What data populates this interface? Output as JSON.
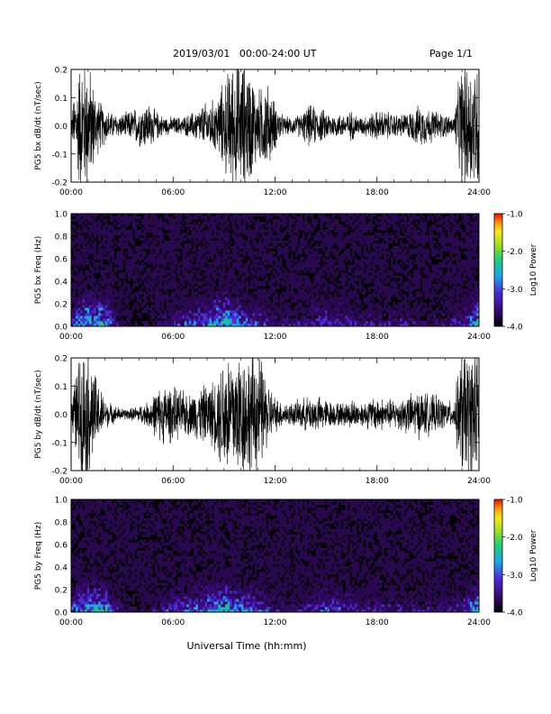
{
  "header": {
    "date_title": "2019/03/01   00:00-24:00 UT",
    "page_label": "Page 1/1"
  },
  "footer": {
    "x_axis_title": "Universal Time (hh:mm)"
  },
  "colors": {
    "trace": "#000000",
    "background": "#ffffff",
    "spectrogram_bg": "#000000"
  },
  "chart_data": [
    {
      "type": "line",
      "ylabel": "PG5 bx dB/dt (nT/sec)",
      "xlim": [
        "00:00",
        "24:00"
      ],
      "ylim": [
        -0.2,
        0.2
      ],
      "x_tick_labels": [
        "00:00",
        "06:00",
        "12:00",
        "18:00",
        "24:00"
      ],
      "y_tick_labels": [
        "-0.2",
        "-0.1",
        "0.0",
        "0.1",
        "0.2"
      ],
      "series": [
        {
          "x_hours": [
            0,
            0.5,
            1,
            1.5,
            2,
            2.5,
            3,
            3.5,
            4,
            4.5,
            5,
            5.5,
            6,
            6.5,
            7,
            7.5,
            8,
            8.5,
            9,
            9.5,
            10,
            10.5,
            11,
            11.5,
            12,
            12.5,
            13,
            13.5,
            14,
            14.5,
            15,
            15.5,
            16,
            16.5,
            17,
            17.5,
            18,
            18.5,
            19,
            19.5,
            20,
            20.5,
            21,
            21.5,
            22,
            22.5,
            23,
            23.5,
            24
          ],
          "amplitude": [
            0.03,
            0.22,
            0.22,
            0.1,
            0.06,
            0.04,
            0.04,
            0.05,
            0.07,
            0.08,
            0.05,
            0.03,
            0.03,
            0.03,
            0.04,
            0.06,
            0.08,
            0.09,
            0.15,
            0.22,
            0.22,
            0.2,
            0.12,
            0.15,
            0.08,
            0.03,
            0.03,
            0.04,
            0.07,
            0.06,
            0.05,
            0.04,
            0.04,
            0.05,
            0.03,
            0.04,
            0.05,
            0.05,
            0.04,
            0.04,
            0.05,
            0.07,
            0.06,
            0.05,
            0.04,
            0.03,
            0.22,
            0.22,
            0.22
          ]
        }
      ]
    },
    {
      "type": "heatmap",
      "ylabel": "PG5 bx Freq (Hz)",
      "xlim": [
        "00:00",
        "24:00"
      ],
      "ylim": [
        0.0,
        1.0
      ],
      "x_tick_labels": [
        "00:00",
        "06:00",
        "12:00",
        "18:00",
        "24:00"
      ],
      "y_tick_labels": [
        "0.0",
        "0.2",
        "0.4",
        "0.6",
        "0.8",
        "1.0"
      ],
      "colorbar": {
        "label": "Log10 Power",
        "range": [
          -4.0,
          -1.0
        ],
        "tick_labels": [
          "-1.0",
          "-2.0",
          "-3.0",
          "-4.0"
        ]
      },
      "low_freq_power_by_hour": [
        -3.0,
        -2.5,
        -2.6,
        -3.6,
        -3.8,
        -3.5,
        -3.2,
        -3.0,
        -2.8,
        -2.4,
        -2.8,
        -3.0,
        -3.3,
        -3.4,
        -3.2,
        -3.0,
        -3.1,
        -3.3,
        -3.4,
        -3.3,
        -3.4,
        -3.5,
        -3.4,
        -3.2,
        -2.4
      ]
    },
    {
      "type": "line",
      "ylabel": "PG5 by dB/dt (nT/sec)",
      "xlim": [
        "00:00",
        "24:00"
      ],
      "ylim": [
        -0.2,
        0.2
      ],
      "x_tick_labels": [
        "00:00",
        "06:00",
        "12:00",
        "18:00",
        "24:00"
      ],
      "y_tick_labels": [
        "-0.2",
        "-0.1",
        "0.0",
        "0.1",
        "0.2"
      ],
      "series": [
        {
          "x_hours": [
            0,
            0.5,
            1,
            1.5,
            2,
            2.5,
            3,
            3.5,
            4,
            4.5,
            5,
            5.5,
            6,
            6.5,
            7,
            7.5,
            8,
            8.5,
            9,
            9.5,
            10,
            10.5,
            11,
            11.5,
            12,
            12.5,
            13,
            13.5,
            14,
            14.5,
            15,
            15.5,
            16,
            16.5,
            17,
            17.5,
            18,
            18.5,
            19,
            19.5,
            20,
            20.5,
            21,
            21.5,
            22,
            22.5,
            23,
            23.5,
            24
          ],
          "amplitude": [
            0.04,
            0.22,
            0.22,
            0.12,
            0.05,
            0.03,
            0.02,
            0.02,
            0.03,
            0.04,
            0.08,
            0.1,
            0.09,
            0.08,
            0.07,
            0.09,
            0.1,
            0.12,
            0.22,
            0.22,
            0.22,
            0.2,
            0.22,
            0.12,
            0.06,
            0.04,
            0.04,
            0.05,
            0.06,
            0.06,
            0.05,
            0.04,
            0.04,
            0.05,
            0.04,
            0.05,
            0.06,
            0.05,
            0.05,
            0.06,
            0.07,
            0.08,
            0.07,
            0.06,
            0.05,
            0.04,
            0.22,
            0.22,
            0.22
          ]
        }
      ]
    },
    {
      "type": "heatmap",
      "ylabel": "PG5 by Freq (Hz)",
      "xlim": [
        "00:00",
        "24:00"
      ],
      "ylim": [
        0.0,
        1.0
      ],
      "x_tick_labels": [
        "00:00",
        "06:00",
        "12:00",
        "18:00",
        "24:00"
      ],
      "y_tick_labels": [
        "0.0",
        "0.2",
        "0.4",
        "0.6",
        "0.8",
        "1.0"
      ],
      "colorbar": {
        "label": "Log10 Power",
        "range": [
          -4.0,
          -1.0
        ],
        "tick_labels": [
          "-1.0",
          "-2.0",
          "-3.0",
          "-4.0"
        ]
      },
      "low_freq_power_by_hour": [
        -3.0,
        -2.6,
        -2.7,
        -3.5,
        -3.7,
        -3.4,
        -3.0,
        -2.9,
        -2.8,
        -2.6,
        -2.8,
        -3.0,
        -3.4,
        -3.5,
        -3.2,
        -3.0,
        -3.1,
        -3.3,
        -3.3,
        -3.3,
        -3.4,
        -3.4,
        -3.3,
        -3.2,
        -2.5
      ]
    }
  ]
}
